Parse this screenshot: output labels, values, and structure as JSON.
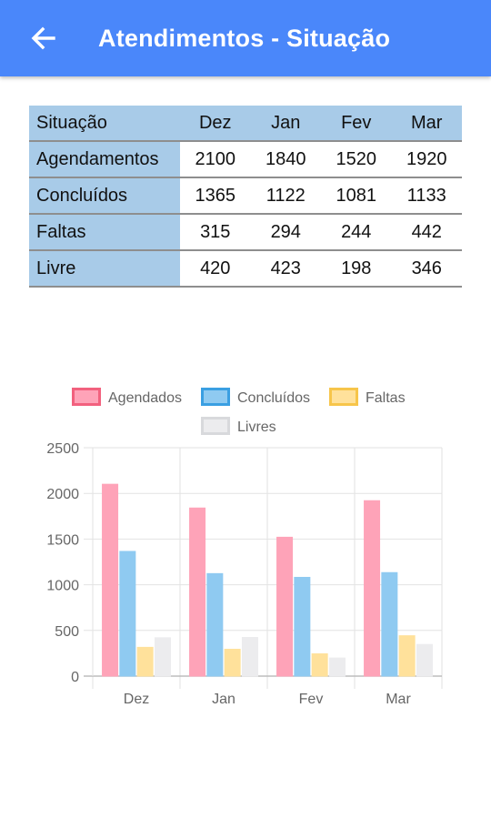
{
  "appbar": {
    "title": "Atendimentos - Situação",
    "back_icon": "arrow-left-icon",
    "color": "#4a87fa"
  },
  "table": {
    "header": [
      "Situação",
      "Dez",
      "Jan",
      "Fev",
      "Mar"
    ],
    "rows": [
      {
        "label": "Agendamentos",
        "values": [
          "2100",
          "1840",
          "1520",
          "1920"
        ]
      },
      {
        "label": "Concluídos",
        "values": [
          "1365",
          "1122",
          "1081",
          "1133"
        ]
      },
      {
        "label": "Faltas",
        "values": [
          "315",
          "294",
          "244",
          "442"
        ]
      },
      {
        "label": "Livre",
        "values": [
          "420",
          "423",
          "198",
          "346"
        ]
      }
    ]
  },
  "chart_data": {
    "type": "bar",
    "categories": [
      "Dez",
      "Jan",
      "Fev",
      "Mar"
    ],
    "series": [
      {
        "name": "Agendados",
        "values": [
          2100,
          1840,
          1520,
          1920
        ],
        "fill": "#fea3b8",
        "stroke": "#f2617e"
      },
      {
        "name": "Concluídos",
        "values": [
          1365,
          1122,
          1081,
          1133
        ],
        "fill": "#8fcaf1",
        "stroke": "#3a9fe2"
      },
      {
        "name": "Faltas",
        "values": [
          315,
          294,
          244,
          442
        ],
        "fill": "#ffe19b",
        "stroke": "#f7c54a"
      },
      {
        "name": "Livres",
        "values": [
          420,
          423,
          198,
          346
        ],
        "fill": "#ececee",
        "stroke": "#d8d9dc"
      }
    ],
    "ylim": [
      0,
      2500
    ],
    "yticks": [
      0,
      500,
      1000,
      1500,
      2000,
      2500
    ],
    "grid": true,
    "legend": "top"
  }
}
